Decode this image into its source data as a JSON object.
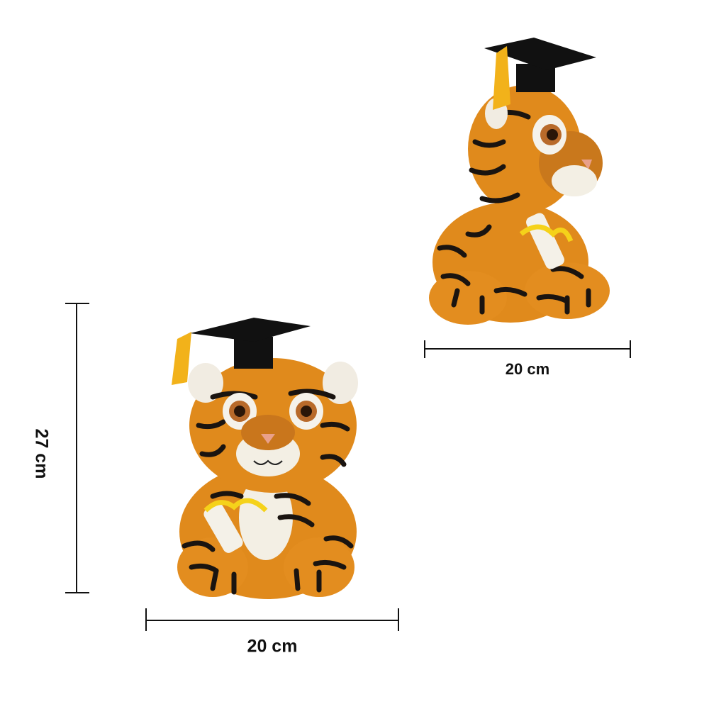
{
  "product": {
    "front_view": {
      "height_label": "27 cm",
      "width_label": "20 cm"
    },
    "side_view": {
      "width_label": "20 cm"
    }
  },
  "colors": {
    "fur": "#e08a1c",
    "stripe": "#1a1410",
    "cap": "#111111",
    "tassel": "#f2b21a",
    "ribbon": "#f5d21a",
    "dimension_line": "#111111"
  }
}
